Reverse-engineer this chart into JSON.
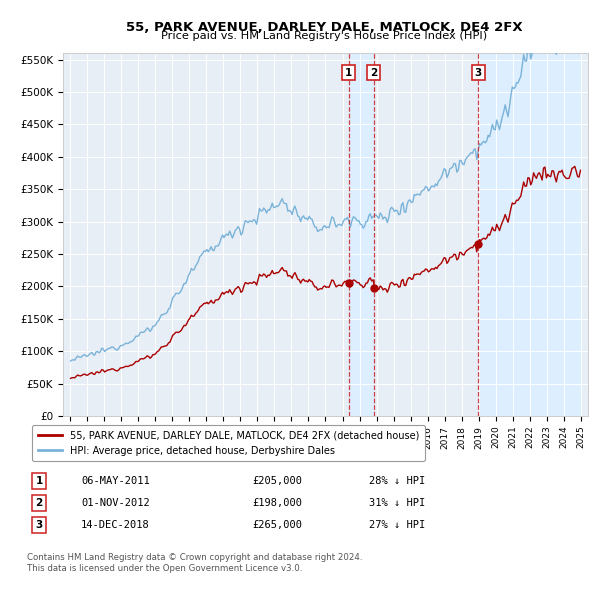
{
  "title": "55, PARK AVENUE, DARLEY DALE, MATLOCK, DE4 2FX",
  "subtitle": "Price paid vs. HM Land Registry's House Price Index (HPI)",
  "ylim": [
    0,
    560000
  ],
  "yticks": [
    0,
    50000,
    100000,
    150000,
    200000,
    250000,
    300000,
    350000,
    400000,
    450000,
    500000,
    550000
  ],
  "ytick_labels": [
    "£0",
    "£50K",
    "£100K",
    "£150K",
    "£200K",
    "£250K",
    "£300K",
    "£350K",
    "£400K",
    "£450K",
    "£500K",
    "£550K"
  ],
  "hpi_color": "#7ab3d9",
  "sale_color": "#aa0000",
  "vline_color": "#cc2222",
  "shade_color": "#ddeeff",
  "background_color": "#ffffff",
  "plot_bg_color": "#e8eef5",
  "grid_color": "#ffffff",
  "legend_label_sale": "55, PARK AVENUE, DARLEY DALE, MATLOCK, DE4 2FX (detached house)",
  "legend_label_hpi": "HPI: Average price, detached house, Derbyshire Dales",
  "transactions": [
    {
      "num": 1,
      "date": "06-MAY-2011",
      "price": "£205,000",
      "pct_text": "28% ↓ HPI"
    },
    {
      "num": 2,
      "date": "01-NOV-2012",
      "price": "£198,000",
      "pct_text": "31% ↓ HPI"
    },
    {
      "num": 3,
      "date": "14-DEC-2018",
      "price": "£265,000",
      "pct_text": "27% ↓ HPI"
    }
  ],
  "sale_times": [
    2011.371,
    2012.838,
    2018.958
  ],
  "sale_prices": [
    205000,
    198000,
    265000
  ],
  "footnote1": "Contains HM Land Registry data © Crown copyright and database right 2024.",
  "footnote2": "This data is licensed under the Open Government Licence v3.0."
}
